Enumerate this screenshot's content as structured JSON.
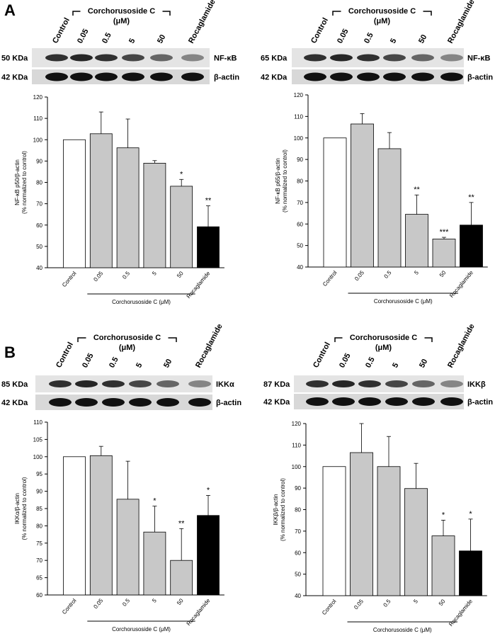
{
  "panel_labels": [
    "A",
    "B"
  ],
  "blots": [
    {
      "lanes": [
        "Control",
        "0.05",
        "0.5",
        "5",
        "50",
        "Rocaglamide"
      ],
      "group": "Corchorusoside C",
      "group_unit": "(μM)",
      "rows": [
        {
          "size": "50 KDa",
          "protein": "NF-κB"
        },
        {
          "size": "42 KDa",
          "protein": "β-actin"
        }
      ]
    },
    {
      "lanes": [
        "Control",
        "0.05",
        "0.5",
        "5",
        "50",
        "Rocaglamide"
      ],
      "group": "Corchorusoside C",
      "group_unit": "(μM)",
      "rows": [
        {
          "size": "65 KDa",
          "protein": "NF-κB"
        },
        {
          "size": "42 KDa",
          "protein": "β-actin"
        }
      ]
    },
    {
      "lanes": [
        "Control",
        "0.05",
        "0.5",
        "5",
        "50",
        "Rocaglamide"
      ],
      "group": "Corchorusoside C",
      "group_unit": "(μM)",
      "rows": [
        {
          "size": "85 KDa",
          "protein": "IKKα"
        },
        {
          "size": "42 KDa",
          "protein": "β-actin"
        }
      ]
    },
    {
      "lanes": [
        "Control",
        "0.05",
        "0.5",
        "5",
        "50",
        "Rocaglamide"
      ],
      "group": "Corchorusoside C",
      "group_unit": "(μM)",
      "rows": [
        {
          "size": "87 KDa",
          "protein": "IKKβ"
        },
        {
          "size": "42 KDa",
          "protein": "β-actin"
        }
      ]
    }
  ],
  "chart_data": [
    {
      "type": "bar",
      "ylabel": [
        "NF-κB p50/β-actin",
        "(% normalized to control)"
      ],
      "categories": [
        "Control",
        "0.05",
        "0.5",
        "5",
        "50",
        "Rocaglamide"
      ],
      "group_label": "Corchorusoside C (μM)",
      "values": [
        100,
        102.8,
        96.2,
        89,
        78.2,
        59.2
      ],
      "errors": [
        0,
        10.2,
        13.5,
        1.2,
        3.2,
        9.8
      ],
      "significance": [
        null,
        null,
        null,
        null,
        "*",
        "**"
      ],
      "colors": [
        "#ffffff",
        "#c8c8c8",
        "#c8c8c8",
        "#c8c8c8",
        "#c8c8c8",
        "#000000"
      ],
      "ylim": [
        40,
        120
      ],
      "yticks": [
        40,
        50,
        60,
        70,
        80,
        90,
        100,
        110,
        120
      ]
    },
    {
      "type": "bar",
      "ylabel": [
        "NF-κB p65/β-actin",
        "(% normalized to control)"
      ],
      "categories": [
        "Control",
        "0.05",
        "0.5",
        "5",
        "50",
        "Rocaglamide"
      ],
      "group_label": "Corchorusoside C (μM)",
      "values": [
        100,
        106.5,
        95,
        64.5,
        53,
        59.5
      ],
      "errors": [
        0,
        4.8,
        7.5,
        9,
        0.8,
        10.5
      ],
      "significance": [
        null,
        null,
        null,
        "**",
        "***",
        "**"
      ],
      "colors": [
        "#ffffff",
        "#c8c8c8",
        "#c8c8c8",
        "#c8c8c8",
        "#c8c8c8",
        "#000000"
      ],
      "ylim": [
        40,
        120
      ],
      "yticks": [
        40,
        50,
        60,
        70,
        80,
        90,
        100,
        110,
        120
      ]
    },
    {
      "type": "bar",
      "ylabel": [
        "IKKα/β-actin",
        "(% normalized to control)"
      ],
      "categories": [
        "Control",
        "0.05",
        "0.5",
        "5",
        "50",
        "Rocaglamide"
      ],
      "group_label": "Corchorusoside C (μM)",
      "values": [
        100,
        100.3,
        87.7,
        78.2,
        70,
        83
      ],
      "errors": [
        0,
        2.7,
        11,
        7.5,
        9.2,
        5.8
      ],
      "significance": [
        null,
        null,
        null,
        "*",
        "**",
        "*"
      ],
      "colors": [
        "#ffffff",
        "#c8c8c8",
        "#c8c8c8",
        "#c8c8c8",
        "#c8c8c8",
        "#000000"
      ],
      "ylim": [
        60,
        110
      ],
      "yticks": [
        60,
        65,
        70,
        75,
        80,
        85,
        90,
        95,
        100,
        105,
        110
      ]
    },
    {
      "type": "bar",
      "ylabel": [
        "IKKβ/β-actin",
        "(% normalized to control)"
      ],
      "categories": [
        "Control",
        "0.05",
        "0.5",
        "5",
        "50",
        "Rocaglamide"
      ],
      "group_label": "Corchorusoside C (μM)",
      "values": [
        100,
        106.5,
        100,
        89.8,
        67.8,
        60.8
      ],
      "errors": [
        0,
        13.5,
        14,
        11.7,
        7.3,
        14.8
      ],
      "significance": [
        null,
        null,
        null,
        null,
        "*",
        "*"
      ],
      "colors": [
        "#ffffff",
        "#c8c8c8",
        "#c8c8c8",
        "#c8c8c8",
        "#c8c8c8",
        "#000000"
      ],
      "ylim": [
        40,
        120
      ],
      "yticks": [
        40,
        50,
        60,
        70,
        80,
        90,
        100,
        110,
        120
      ]
    }
  ]
}
